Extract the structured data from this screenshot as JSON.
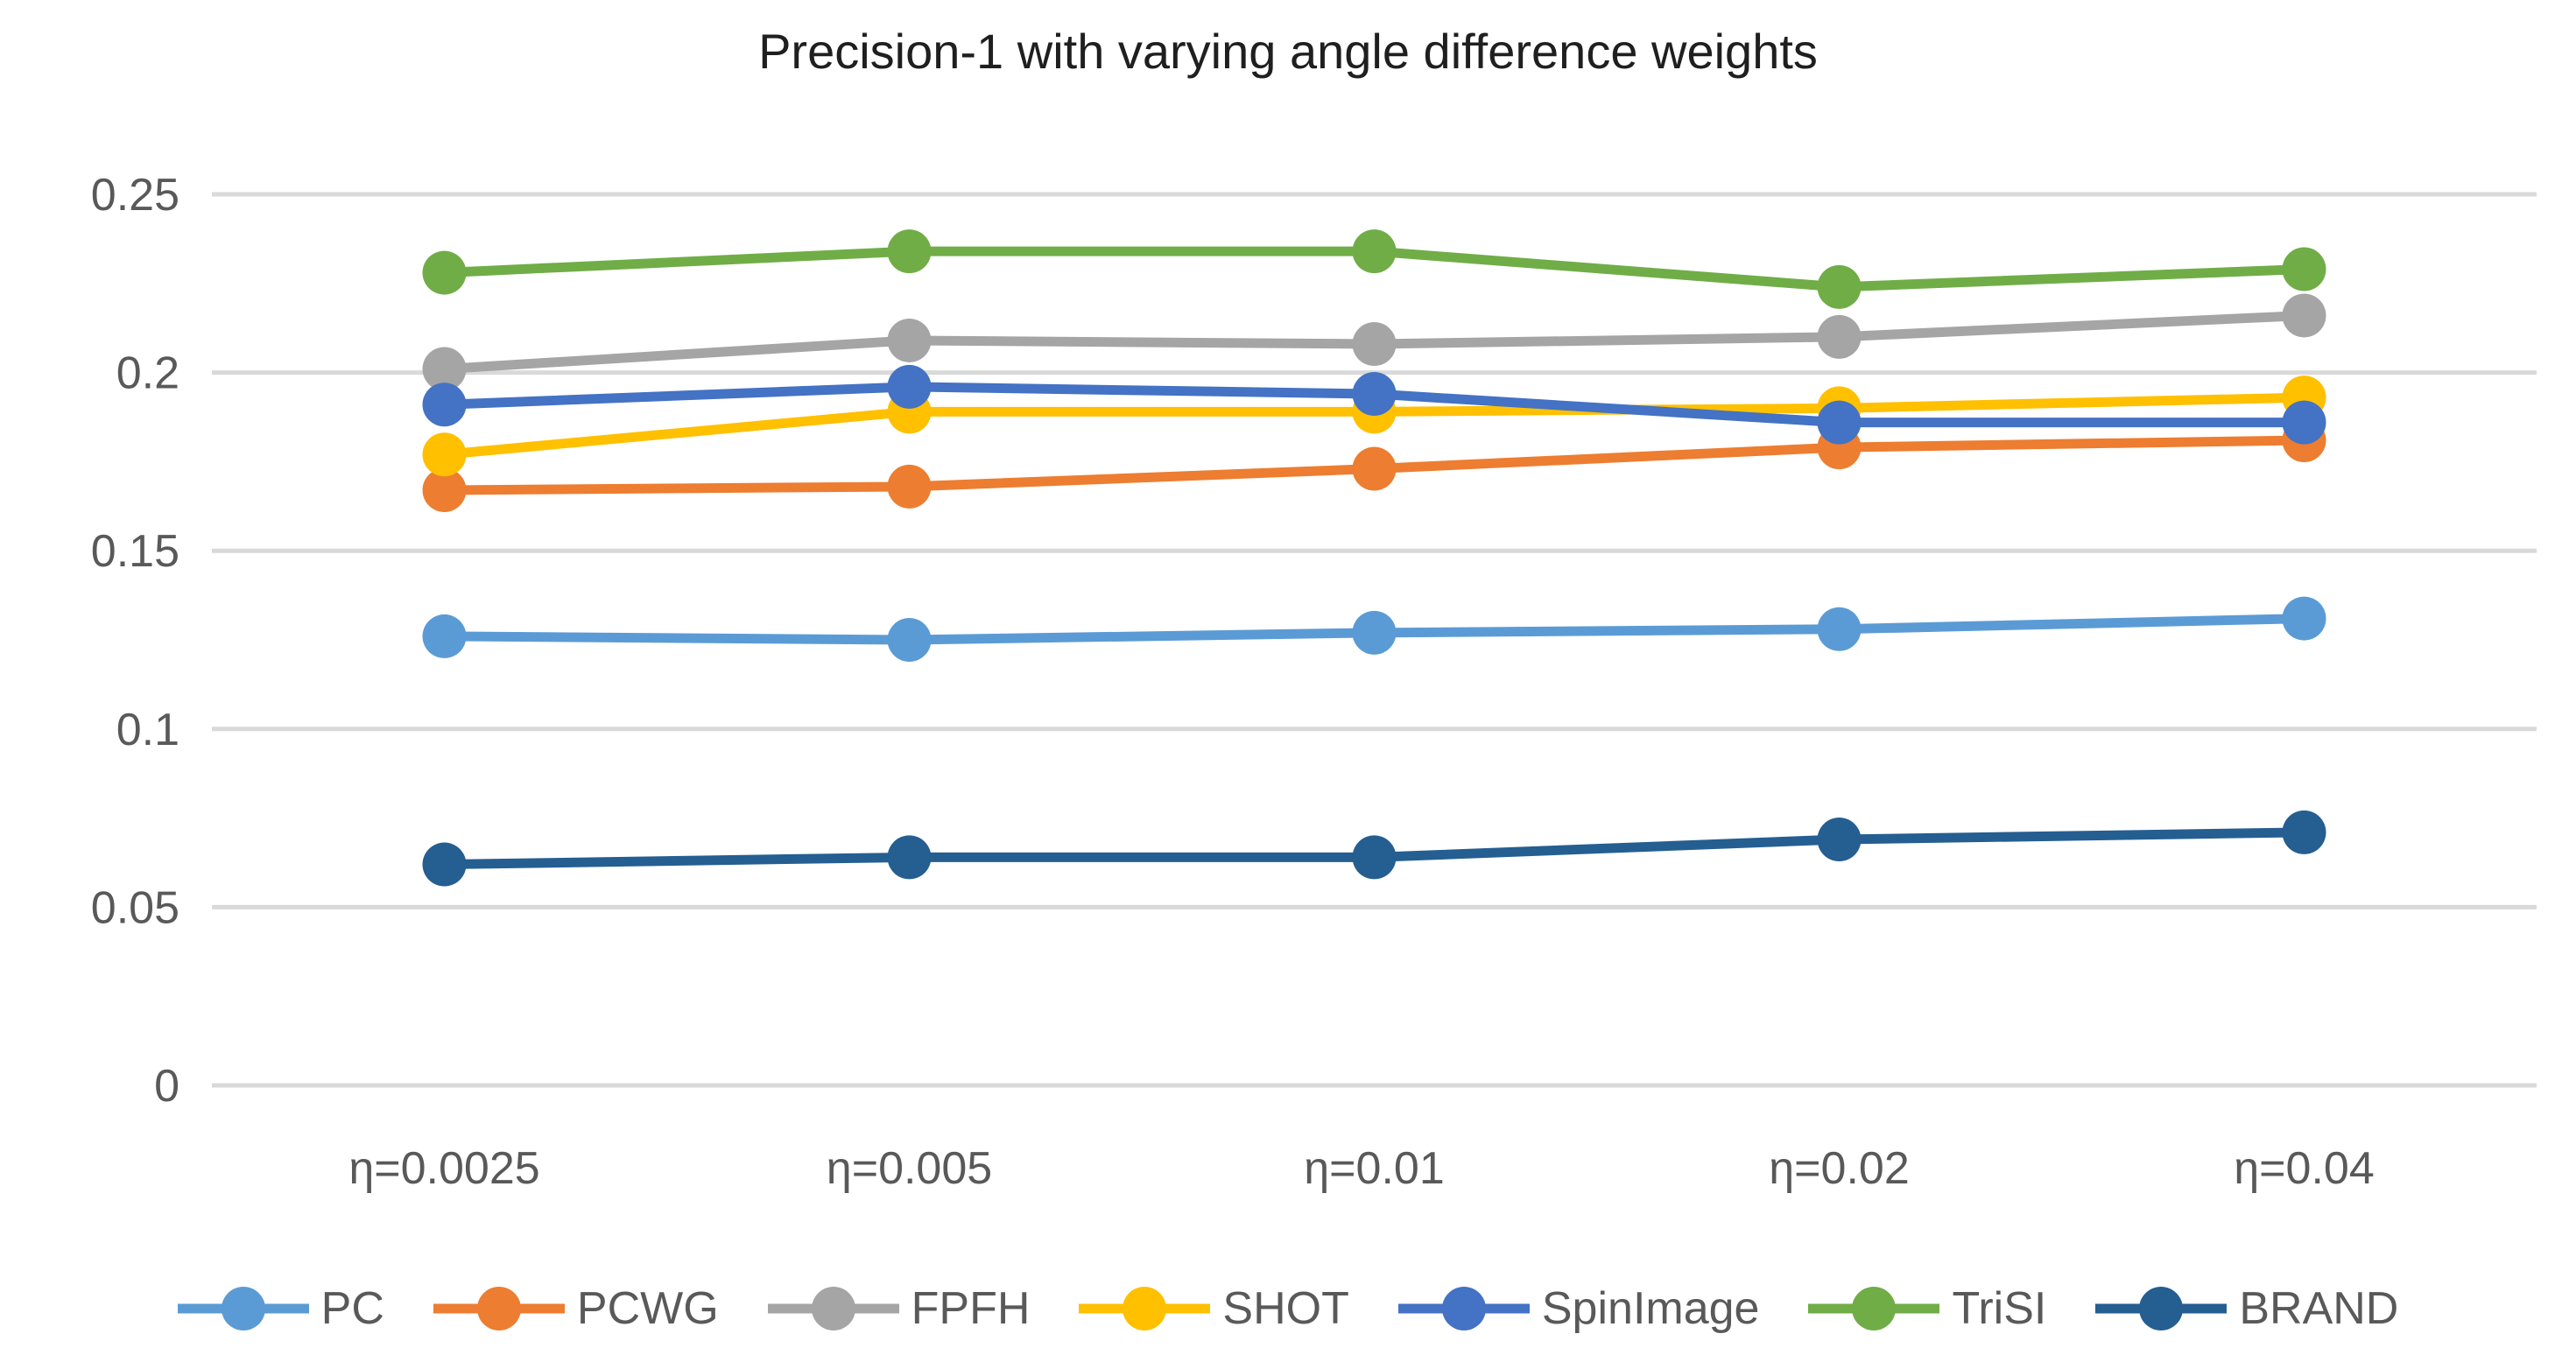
{
  "chart_data": {
    "type": "line",
    "title": "Precision-1 with varying angle difference weights",
    "categories": [
      "η=0.0025",
      "η=0.005",
      "η=0.01",
      "η=0.02",
      "η=0.04"
    ],
    "series": [
      {
        "name": "PC",
        "color": "#5B9BD5",
        "values": [
          0.126,
          0.125,
          0.127,
          0.128,
          0.131
        ]
      },
      {
        "name": "PCWG",
        "color": "#ED7D31",
        "values": [
          0.167,
          0.168,
          0.173,
          0.179,
          0.181
        ]
      },
      {
        "name": "FPFH",
        "color": "#A5A5A5",
        "values": [
          0.201,
          0.209,
          0.208,
          0.21,
          0.216
        ]
      },
      {
        "name": "SHOT",
        "color": "#FFC000",
        "values": [
          0.177,
          0.189,
          0.189,
          0.19,
          0.193
        ]
      },
      {
        "name": "SpinImage",
        "color": "#4472C4",
        "values": [
          0.191,
          0.196,
          0.194,
          0.186,
          0.186
        ]
      },
      {
        "name": "TriSI",
        "color": "#70AD47",
        "values": [
          0.228,
          0.234,
          0.234,
          0.224,
          0.229
        ]
      },
      {
        "name": "BRAND",
        "color": "#255E91",
        "values": [
          0.062,
          0.064,
          0.064,
          0.069,
          0.071
        ]
      }
    ],
    "y_axis": {
      "min": 0,
      "max": 0.25,
      "tick_step": 0.05,
      "tick_labels": [
        "0",
        "0.05",
        "0.1",
        "0.15",
        "0.2",
        "0.25"
      ]
    },
    "grid": true,
    "legend_position": "bottom",
    "colors": {
      "gridline": "#D9D9D9",
      "tick_text": "#595959",
      "title_text": "#1f1f1f"
    }
  }
}
